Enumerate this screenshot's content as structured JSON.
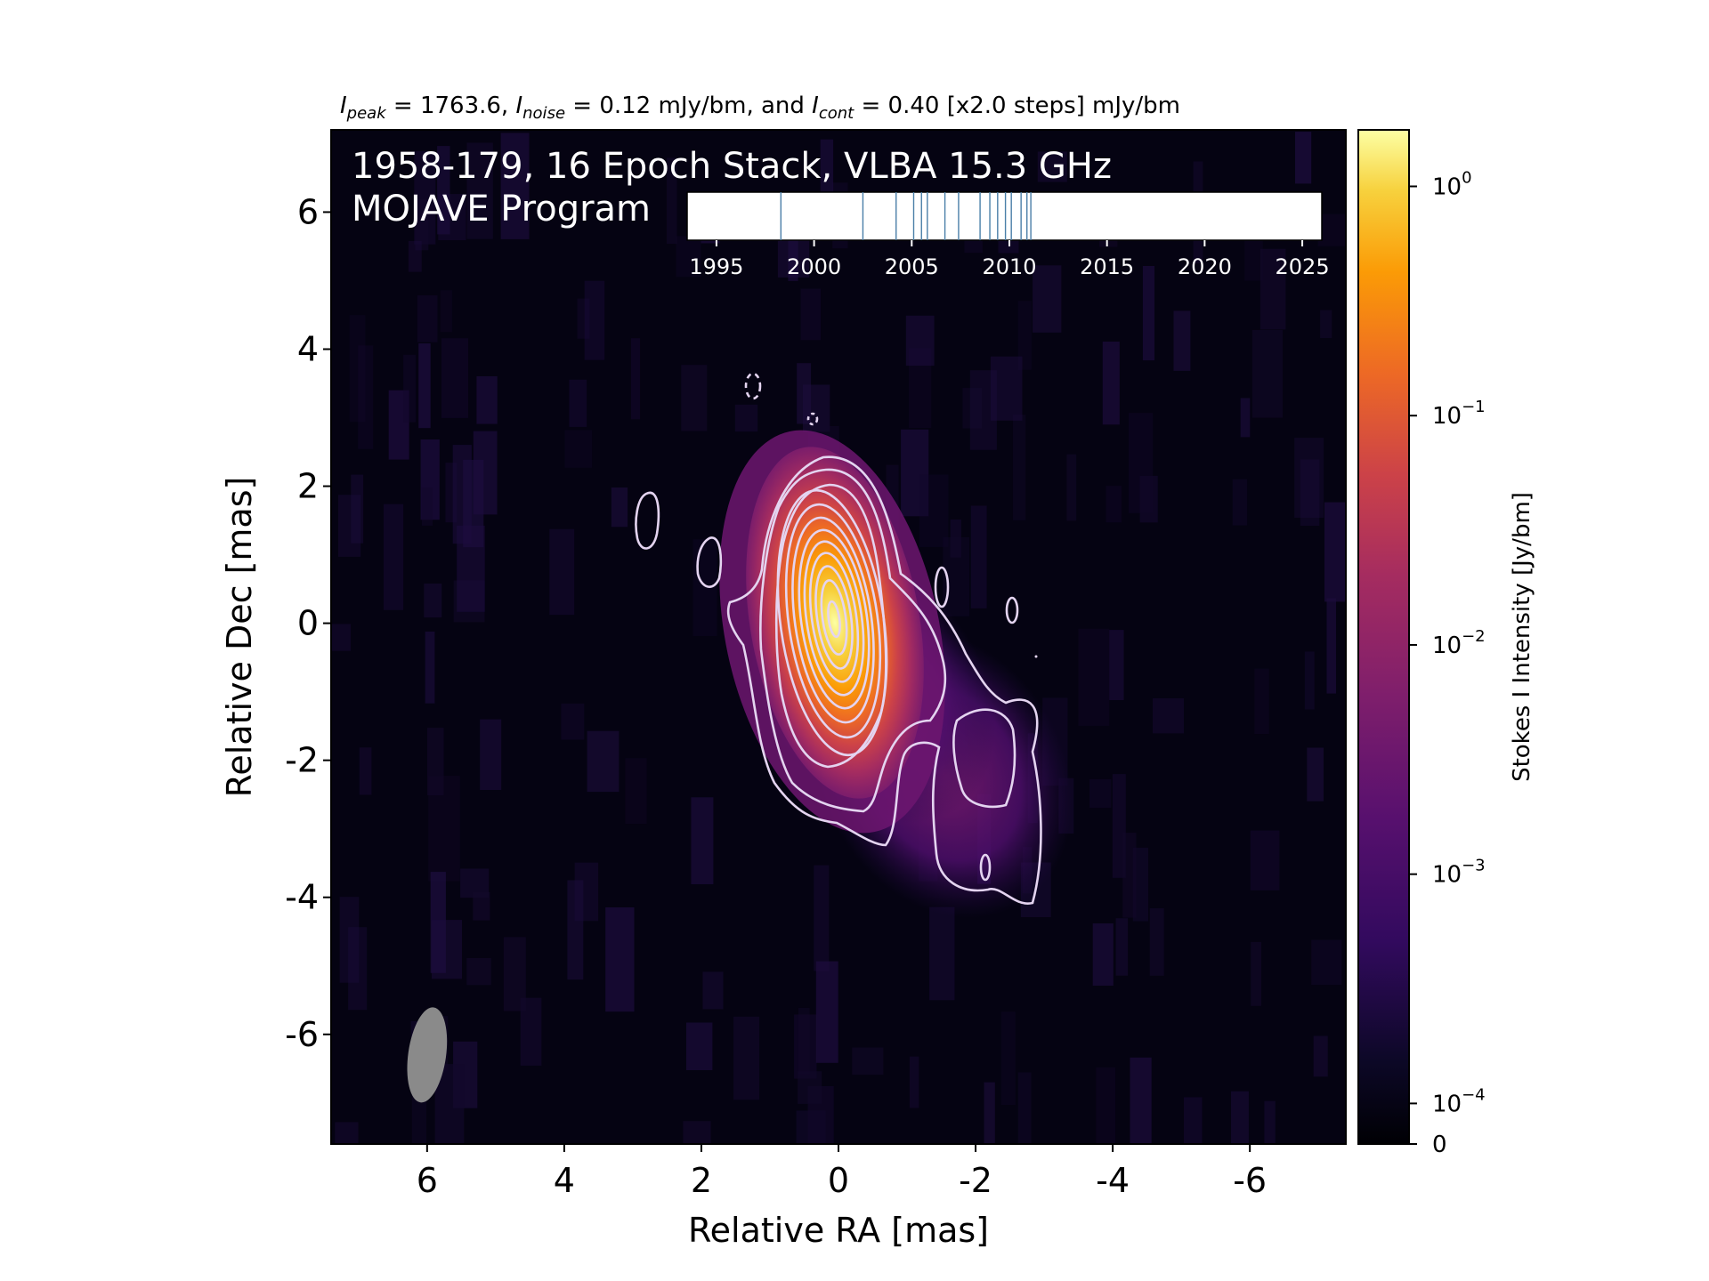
{
  "figure": {
    "title_parts": {
      "peak_sub": "peak",
      "peak_val": " = 1763.6, ",
      "noise_sub": "noise",
      "noise_val": " = 0.12 mJy/bm, and ",
      "cont_sub": "cont",
      "cont_val": " = 0.40 [x2.0 steps] mJy/bm"
    },
    "annotation_line1": "1958-179, 16 Epoch Stack, VLBA 15.3 GHz",
    "annotation_line2": "MOJAVE Program"
  },
  "chart_data": [
    {
      "type": "heatmap",
      "xlabel": "Relative RA [mas]",
      "ylabel": "Relative Dec [mas]",
      "xlim": [
        7.4,
        -7.4
      ],
      "ylim": [
        -7.6,
        7.2
      ],
      "xticks": [
        6,
        4,
        2,
        0,
        -2,
        -4,
        -6
      ],
      "xtick_labels": [
        "6",
        "4",
        "2",
        "0",
        "-2",
        "-4",
        "-6"
      ],
      "yticks": [
        6,
        4,
        2,
        0,
        -2,
        -4,
        -6
      ],
      "ytick_labels": [
        "6",
        "4",
        "2",
        "0",
        "-2",
        "-4",
        "-6"
      ],
      "colormap": "inferno",
      "contour_color": "#e4d4f0",
      "peak_mjy_per_beam": 1763.6,
      "noise_mjy_per_beam": 0.12,
      "lowest_contour_mjy_per_beam": 0.4,
      "contour_step_factor": 2.0,
      "beam": {
        "x": 6.0,
        "y": -6.3,
        "major_mas": 1.4,
        "minor_mas": 0.5
      },
      "colorbar": {
        "label": "Stokes I Intensity [Jy/bm]",
        "scale": "log",
        "min": 0,
        "max": 1.7636,
        "tick_values": [
          1,
          0.1,
          0.01,
          0.001,
          0.0001,
          0
        ],
        "tick_mantissa": [
          "10",
          "10",
          "10",
          "10",
          "10",
          "0"
        ],
        "tick_exponent": [
          "0",
          "−1",
          "−2",
          "−3",
          "−4",
          ""
        ]
      }
    },
    {
      "type": "scatter",
      "title": "",
      "xlim": [
        1993.5,
        2026
      ],
      "xticks": [
        1995,
        2000,
        2005,
        2010,
        2015,
        2020,
        2025
      ],
      "xtick_labels": [
        "1995",
        "2000",
        "2005",
        "2010",
        "2015",
        "2020",
        "2025"
      ],
      "epochs": [
        1998.3,
        2002.5,
        2004.2,
        2005.1,
        2005.5,
        2005.8,
        2006.7,
        2007.4,
        2008.5,
        2009.0,
        2009.4,
        2009.8,
        2010.1,
        2010.6,
        2010.9,
        2011.1
      ]
    }
  ]
}
